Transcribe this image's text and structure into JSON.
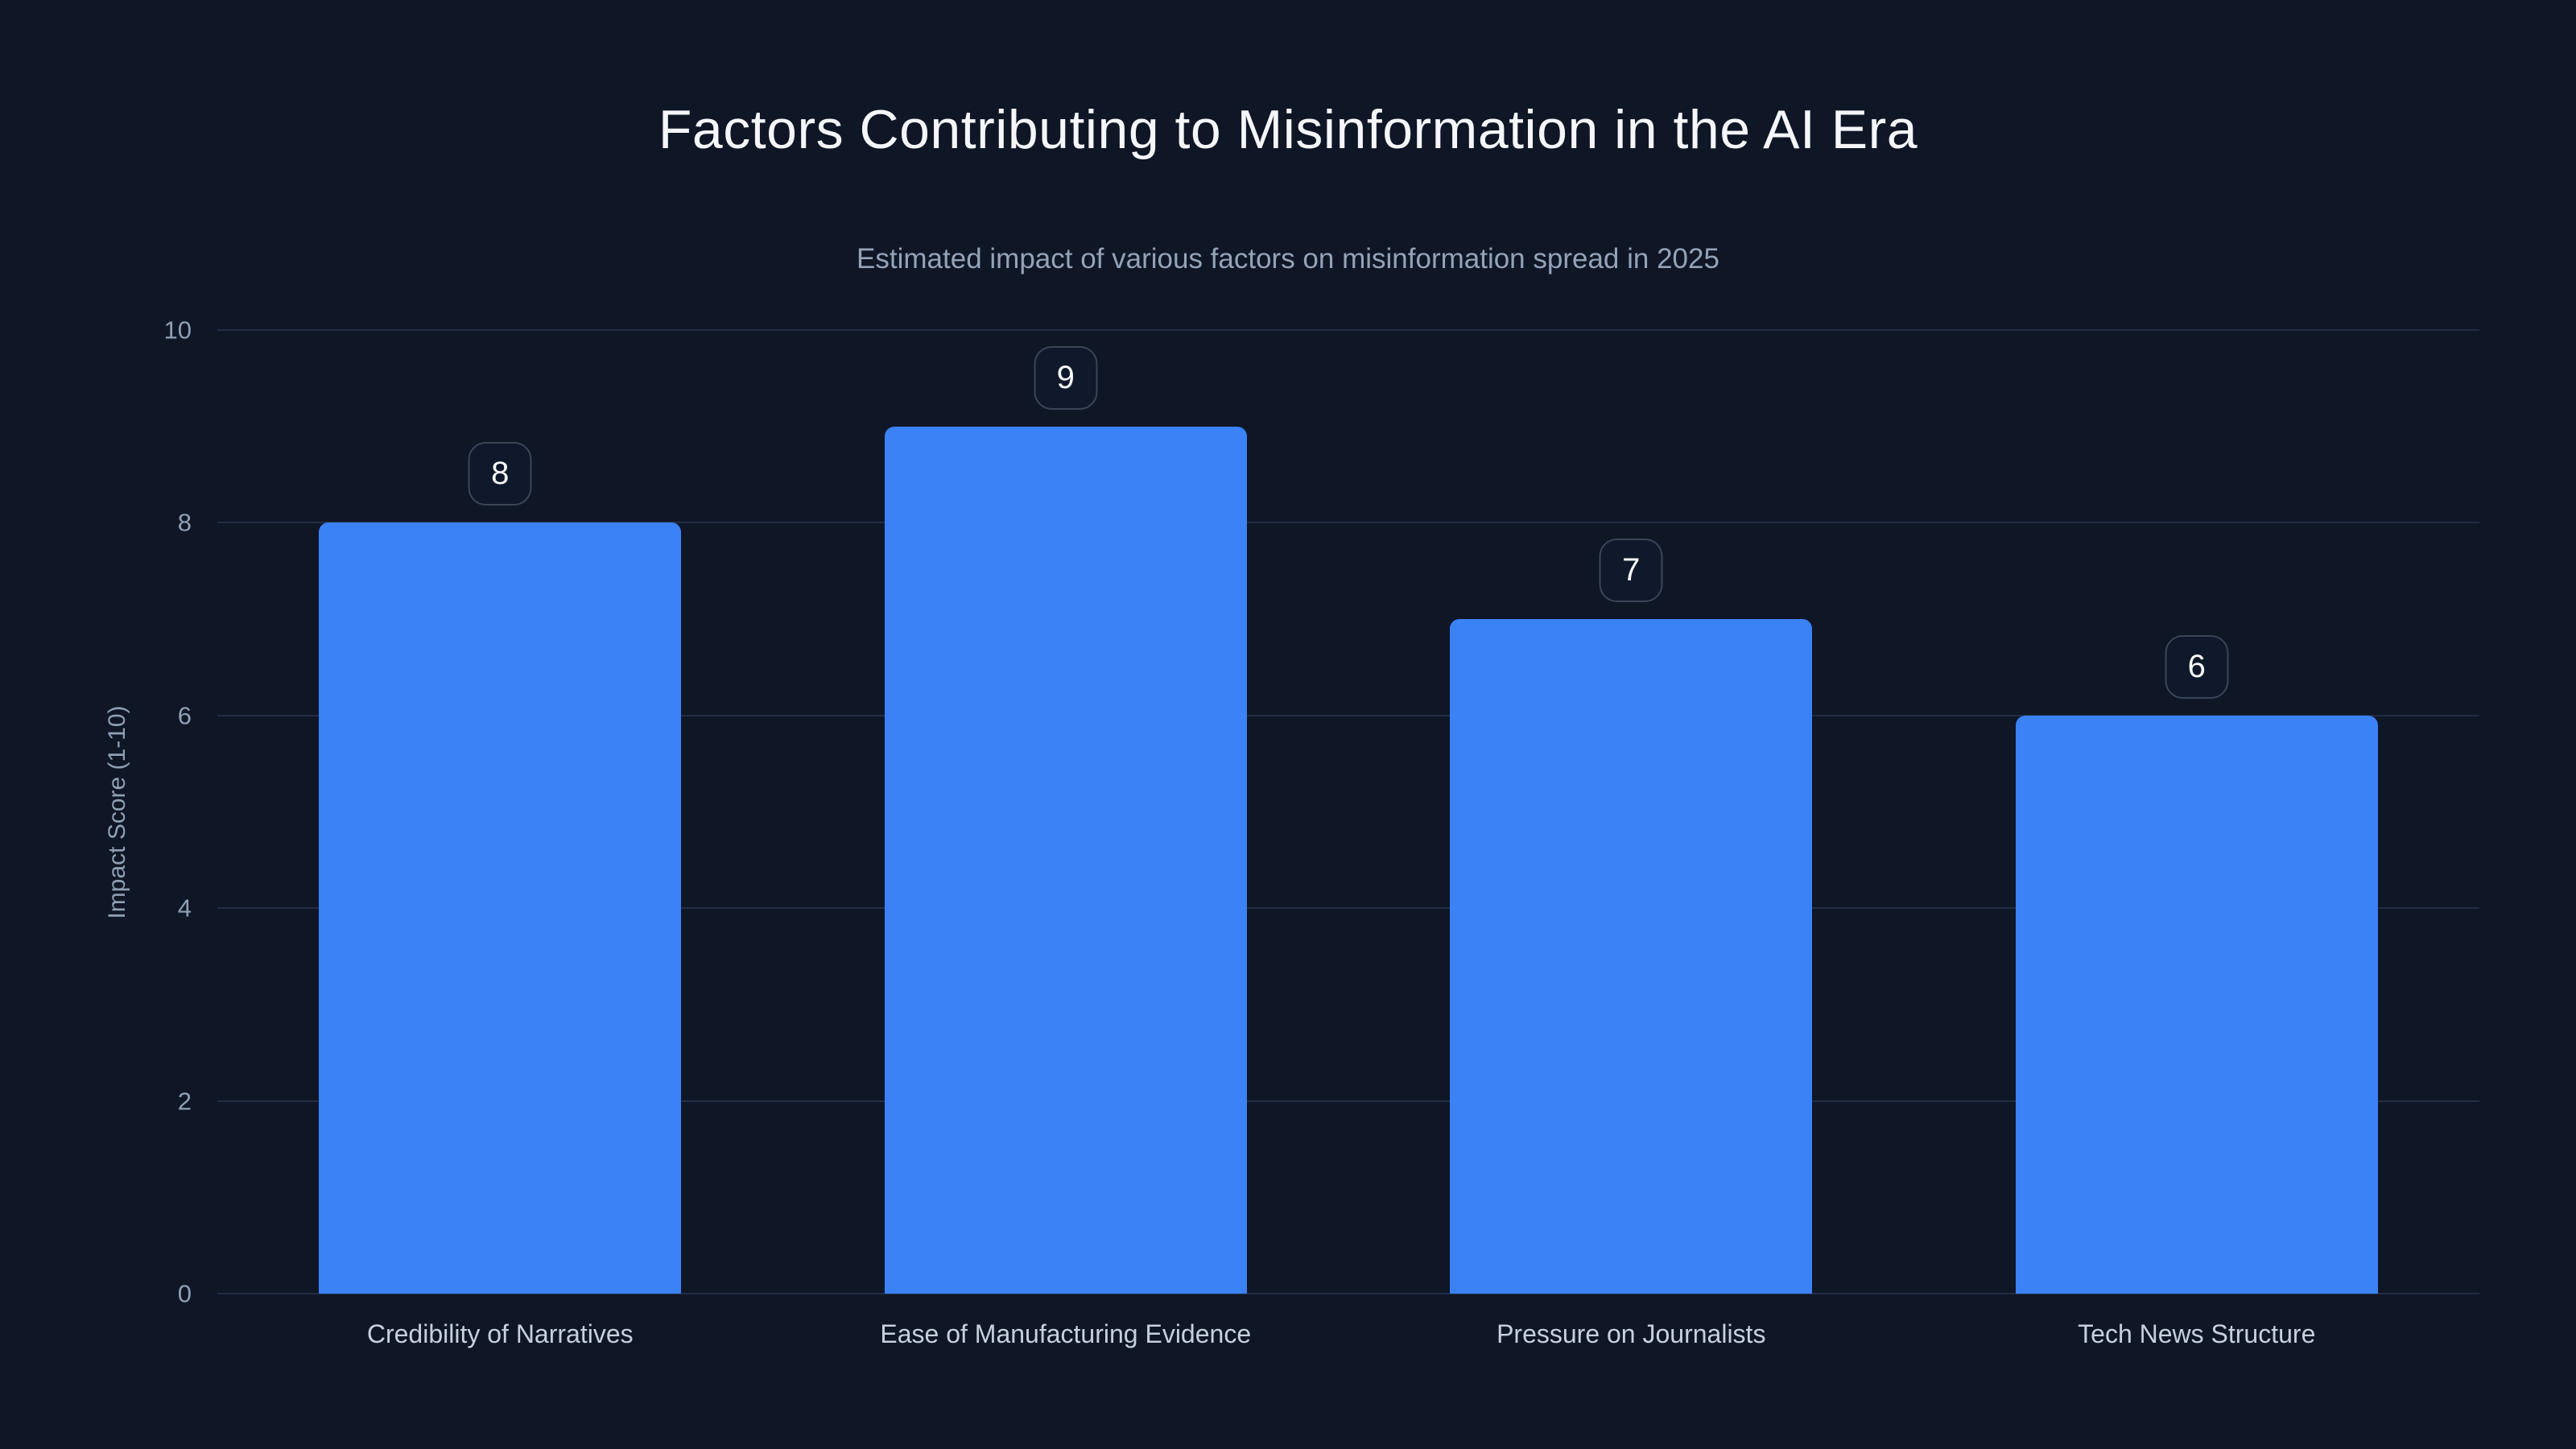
{
  "chart_data": {
    "type": "bar",
    "title": "Factors Contributing to Misinformation in the AI Era",
    "subtitle": "Estimated impact of various factors on misinformation spread in 2025",
    "categories": [
      "Credibility of Narratives",
      "Ease of Manufacturing Evidence",
      "Pressure on Journalists",
      "Tech News Structure"
    ],
    "values": [
      8,
      9,
      7,
      6
    ],
    "xlabel": "",
    "ylabel": "Impact Score (1-10)",
    "ylim": [
      0,
      10
    ],
    "yticks": [
      0,
      2,
      4,
      6,
      8,
      10
    ],
    "grid": true,
    "legend": "none",
    "colors": {
      "background": "#0f1626",
      "bar": "#3b82f6",
      "title_text": "#f4f6fa",
      "subtitle_text": "#94a3b8",
      "axis_text": "#8fa0b4",
      "category_text": "#c7d0dc",
      "gridline": "#232e44",
      "badge_border": "#3b4558",
      "badge_text": "#f8fafc"
    }
  }
}
